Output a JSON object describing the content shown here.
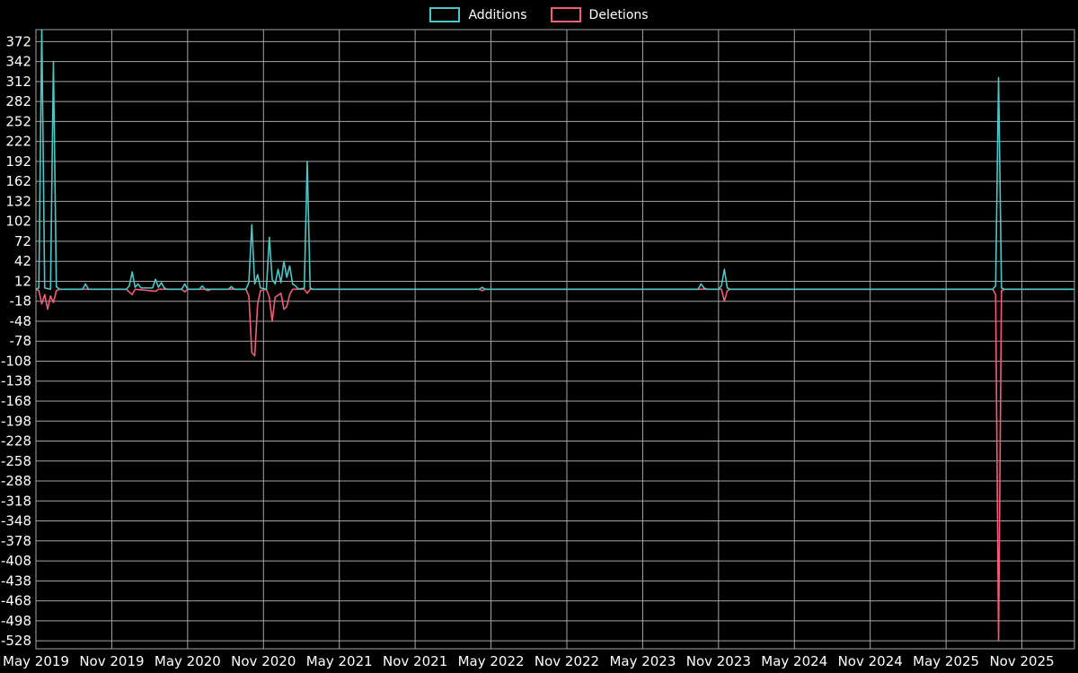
{
  "chart_data": {
    "type": "line",
    "title": "",
    "legend_position": "top-center",
    "background": "#000000",
    "grid": true,
    "grid_color": "#a6a6a6",
    "text_color": "#ffffff",
    "x_axis": {
      "tick_labels": [
        "May 2019",
        "Nov 2019",
        "May 2020",
        "Nov 2020",
        "May 2021",
        "Nov 2021",
        "May 2022",
        "Nov 2022",
        "May 2023",
        "Nov 2023",
        "May 2024",
        "Nov 2024",
        "May 2025",
        "Nov 2025"
      ],
      "tick_weeks": [
        0,
        26,
        52,
        78,
        104,
        130,
        156,
        182,
        208,
        234,
        260,
        286,
        312,
        338
      ],
      "domain_weeks": [
        0,
        356
      ]
    },
    "y_axis": {
      "tick_values": [
        372,
        342,
        312,
        282,
        252,
        222,
        192,
        162,
        132,
        102,
        72,
        42,
        12,
        -18,
        -48,
        -78,
        -108,
        -138,
        -168,
        -198,
        -228,
        -258,
        -288,
        -318,
        -348,
        -378,
        -408,
        -438,
        -468,
        -498,
        -528
      ],
      "domain": [
        -540,
        390
      ]
    },
    "series": [
      {
        "name": "Additions",
        "color": "#4cc6c6",
        "points": [
          [
            0,
            0
          ],
          [
            1,
            2
          ],
          [
            2,
            395
          ],
          [
            3,
            2
          ],
          [
            5,
            0
          ],
          [
            6,
            342
          ],
          [
            7,
            4
          ],
          [
            8,
            0
          ],
          [
            16,
            0
          ],
          [
            17,
            8
          ],
          [
            18,
            0
          ],
          [
            31,
            0
          ],
          [
            32,
            5
          ],
          [
            33,
            26
          ],
          [
            34,
            3
          ],
          [
            35,
            8
          ],
          [
            36,
            2
          ],
          [
            40,
            2
          ],
          [
            41,
            15
          ],
          [
            42,
            3
          ],
          [
            43,
            10
          ],
          [
            44,
            2
          ],
          [
            45,
            0
          ],
          [
            50,
            0
          ],
          [
            51,
            8
          ],
          [
            52,
            0
          ],
          [
            56,
            0
          ],
          [
            57,
            5
          ],
          [
            58,
            0
          ],
          [
            66,
            0
          ],
          [
            67,
            4
          ],
          [
            68,
            0
          ],
          [
            72,
            0
          ],
          [
            73,
            10
          ],
          [
            74,
            97
          ],
          [
            75,
            8
          ],
          [
            76,
            22
          ],
          [
            77,
            2
          ],
          [
            79,
            0
          ],
          [
            80,
            78
          ],
          [
            81,
            15
          ],
          [
            82,
            8
          ],
          [
            83,
            30
          ],
          [
            84,
            10
          ],
          [
            85,
            42
          ],
          [
            86,
            18
          ],
          [
            87,
            35
          ],
          [
            88,
            8
          ],
          [
            89,
            5
          ],
          [
            90,
            0
          ],
          [
            92,
            2
          ],
          [
            93,
            192
          ],
          [
            94,
            2
          ],
          [
            95,
            0
          ],
          [
            152,
            0
          ],
          [
            153,
            3
          ],
          [
            154,
            0
          ],
          [
            227,
            0
          ],
          [
            228,
            8
          ],
          [
            229,
            2
          ],
          [
            230,
            0
          ],
          [
            234,
            0
          ],
          [
            235,
            5
          ],
          [
            236,
            30
          ],
          [
            237,
            2
          ],
          [
            238,
            0
          ],
          [
            328,
            0
          ],
          [
            329,
            5
          ],
          [
            330,
            318
          ],
          [
            331,
            2
          ],
          [
            332,
            0
          ],
          [
            356,
            0
          ]
        ]
      },
      {
        "name": "Deletions",
        "color": "#f35c77",
        "points": [
          [
            0,
            0
          ],
          [
            1,
            -2
          ],
          [
            2,
            -22
          ],
          [
            3,
            -8
          ],
          [
            4,
            -30
          ],
          [
            5,
            -10
          ],
          [
            6,
            -20
          ],
          [
            7,
            -2
          ],
          [
            8,
            0
          ],
          [
            31,
            0
          ],
          [
            33,
            -8
          ],
          [
            34,
            0
          ],
          [
            41,
            -3
          ],
          [
            42,
            0
          ],
          [
            50,
            0
          ],
          [
            51,
            -4
          ],
          [
            52,
            0
          ],
          [
            58,
            0
          ],
          [
            59,
            -2
          ],
          [
            60,
            0
          ],
          [
            72,
            0
          ],
          [
            73,
            -10
          ],
          [
            74,
            -95
          ],
          [
            75,
            -100
          ],
          [
            76,
            -22
          ],
          [
            77,
            -2
          ],
          [
            79,
            0
          ],
          [
            80,
            -12
          ],
          [
            81,
            -48
          ],
          [
            82,
            -12
          ],
          [
            84,
            -6
          ],
          [
            85,
            -30
          ],
          [
            86,
            -26
          ],
          [
            87,
            -8
          ],
          [
            88,
            0
          ],
          [
            92,
            0
          ],
          [
            93,
            -6
          ],
          [
            94,
            0
          ],
          [
            152,
            0
          ],
          [
            153,
            -2
          ],
          [
            154,
            0
          ],
          [
            235,
            0
          ],
          [
            236,
            -18
          ],
          [
            237,
            -2
          ],
          [
            238,
            0
          ],
          [
            328,
            0
          ],
          [
            329,
            -8
          ],
          [
            330,
            -528
          ],
          [
            331,
            -2
          ],
          [
            332,
            0
          ],
          [
            356,
            0
          ]
        ]
      }
    ]
  }
}
